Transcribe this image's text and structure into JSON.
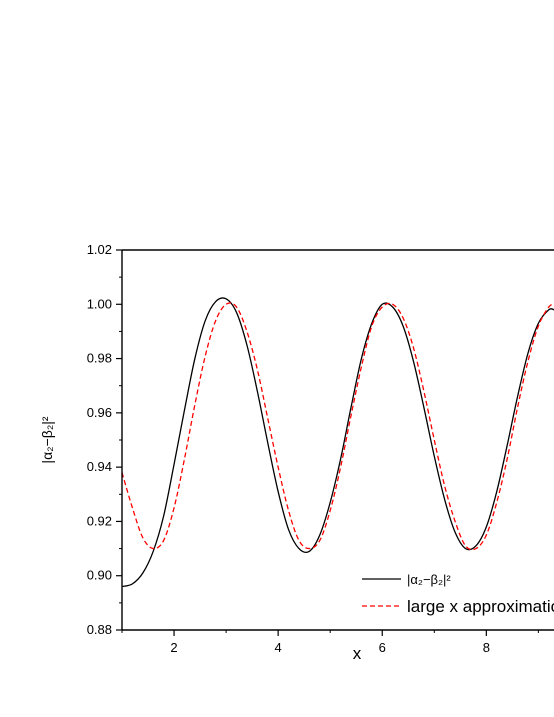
{
  "chart_data": {
    "type": "line",
    "xlabel": "x",
    "ylabel": "|α₂−β₂|²",
    "xlim": [
      1,
      9.3
    ],
    "ylim": [
      0.88,
      1.02
    ],
    "xticks": [
      2,
      4,
      6,
      8
    ],
    "xtick_labels": [
      "2",
      "4",
      "6",
      "8"
    ],
    "yticks": [
      0.88,
      0.9,
      0.92,
      0.94,
      0.96,
      0.98,
      1.0,
      1.02
    ],
    "ytick_labels": [
      "0.88",
      "0.90",
      "0.92",
      "0.94",
      "0.96",
      "0.98",
      "1.00",
      "1.02"
    ],
    "grid": false,
    "legend_position": "bottom-right",
    "series": [
      {
        "name": "|α₂−β₂|²",
        "color": "#000000",
        "style": "solid",
        "x": [
          1.0,
          1.2,
          1.4,
          1.6,
          1.8,
          2.0,
          2.2,
          2.4,
          2.6,
          2.8,
          3.0,
          3.2,
          3.4,
          3.6,
          3.8,
          4.0,
          4.2,
          4.4,
          4.6,
          4.8,
          5.0,
          5.2,
          5.4,
          5.6,
          5.8,
          6.0,
          6.2,
          6.4,
          6.6,
          6.8,
          7.0,
          7.2,
          7.4,
          7.6,
          7.8,
          8.0,
          8.2,
          8.4,
          8.6,
          8.8,
          9.0,
          9.2,
          9.3
        ],
        "y": [
          0.896,
          0.897,
          0.901,
          0.909,
          0.922,
          0.941,
          0.961,
          0.98,
          0.994,
          1.001,
          1.002,
          0.997,
          0.985,
          0.968,
          0.949,
          0.931,
          0.917,
          0.91,
          0.909,
          0.915,
          0.927,
          0.943,
          0.962,
          0.98,
          0.993,
          1.0,
          0.999,
          0.992,
          0.979,
          0.962,
          0.944,
          0.928,
          0.916,
          0.91,
          0.911,
          0.918,
          0.931,
          0.948,
          0.966,
          0.982,
          0.993,
          0.998,
          0.998
        ]
      },
      {
        "name": "large x approximation",
        "color": "#ff0000",
        "style": "dashed",
        "x": [
          1.0,
          1.2,
          1.4,
          1.6,
          1.8,
          2.0,
          2.2,
          2.4,
          2.6,
          2.8,
          3.0,
          3.2,
          3.4,
          3.6,
          3.8,
          4.0,
          4.2,
          4.4,
          4.6,
          4.8,
          5.0,
          5.2,
          5.4,
          5.6,
          5.8,
          6.0,
          6.2,
          6.4,
          6.6,
          6.8,
          7.0,
          7.2,
          7.4,
          7.6,
          7.8,
          8.0,
          8.2,
          8.4,
          8.6,
          8.8,
          9.0,
          9.2,
          9.3
        ],
        "y": [
          0.938,
          0.925,
          0.914,
          0.91,
          0.913,
          0.925,
          0.943,
          0.963,
          0.981,
          0.994,
          1.0,
          0.999,
          0.99,
          0.976,
          0.958,
          0.94,
          0.924,
          0.913,
          0.91,
          0.913,
          0.924,
          0.94,
          0.959,
          0.977,
          0.992,
          0.999,
          1.0,
          0.995,
          0.984,
          0.968,
          0.95,
          0.933,
          0.92,
          0.911,
          0.91,
          0.915,
          0.927,
          0.943,
          0.962,
          0.979,
          0.992,
          0.999,
          1.0
        ]
      }
    ]
  }
}
